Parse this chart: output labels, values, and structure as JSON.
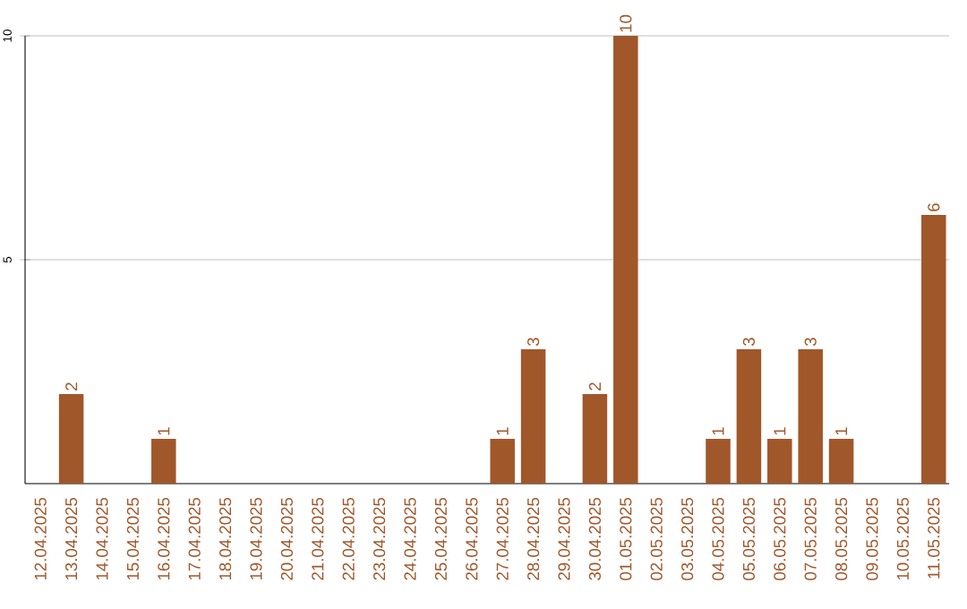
{
  "chart_data": {
    "type": "bar",
    "categories": [
      "12.04.2025",
      "13.04.2025",
      "14.04.2025",
      "15.04.2025",
      "16.04.2025",
      "17.04.2025",
      "18.04.2025",
      "19.04.2025",
      "20.04.2025",
      "21.04.2025",
      "22.04.2025",
      "23.04.2025",
      "24.04.2025",
      "25.04.2025",
      "26.04.2025",
      "27.04.2025",
      "28.04.2025",
      "29.04.2025",
      "30.04.2025",
      "01.05.2025",
      "02.05.2025",
      "03.05.2025",
      "04.05.2025",
      "05.05.2025",
      "06.05.2025",
      "07.05.2025",
      "08.05.2025",
      "09.05.2025",
      "10.05.2025",
      "11.05.2025"
    ],
    "values": [
      0,
      2,
      0,
      0,
      1,
      0,
      0,
      0,
      0,
      0,
      0,
      0,
      0,
      0,
      0,
      1,
      3,
      0,
      2,
      10,
      0,
      0,
      1,
      3,
      1,
      3,
      1,
      0,
      0,
      6
    ],
    "value_labels": [
      null,
      "2",
      null,
      null,
      "1",
      null,
      null,
      null,
      null,
      null,
      null,
      null,
      null,
      null,
      null,
      "1",
      "3",
      null,
      "2",
      "10",
      null,
      null,
      "1",
      "3",
      "1",
      "3",
      "1",
      null,
      null,
      "6"
    ],
    "color": "#a0572a",
    "ylim": [
      0,
      10
    ],
    "yticks": [
      5,
      10
    ],
    "grid": "y"
  }
}
